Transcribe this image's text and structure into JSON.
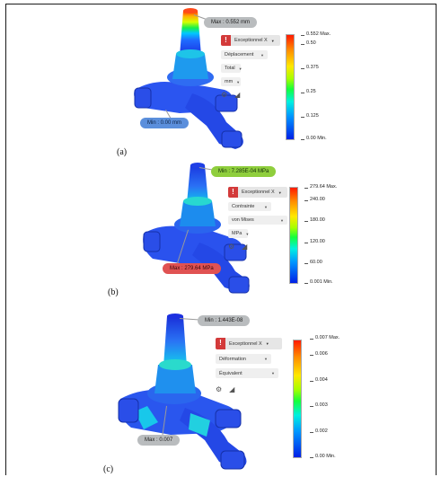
{
  "panels": [
    {
      "label": "(a)",
      "callouts": {
        "max": "Max : 0.552 mm",
        "min": "Min : 0.00 mm"
      },
      "controls": {
        "warning": "Exceptionnel X",
        "dropdowns": [
          "Déplacement",
          "Total",
          "mm"
        ]
      },
      "legend": [
        "0.552 Max.",
        "0.50",
        "0.375",
        "0.25",
        "0.125",
        "0.00 Min."
      ]
    },
    {
      "label": "(b)",
      "callouts": {
        "min": "Min : 7.285E-04 MPa",
        "max": "Max : 279.64 MPa"
      },
      "controls": {
        "warning": "Exceptionnel X",
        "dropdowns": [
          "Contrainte",
          "von Mises",
          "MPa"
        ]
      },
      "legend": [
        "279.64 Max.",
        "240.00",
        "180.00",
        "120.00",
        "60.00",
        "0.001 Min."
      ]
    },
    {
      "label": "(c)",
      "callouts": {
        "min": "Min : 1.443E-08",
        "max": "Max : 0.007"
      },
      "controls": {
        "warning": "Exceptionnel X",
        "dropdowns": [
          "Déformation",
          "Équivalent"
        ]
      },
      "legend": [
        "0.007 Max.",
        "0.006",
        "0.004",
        "0.003",
        "0.002",
        "0.00 Min."
      ]
    }
  ],
  "colors": {
    "callout_gray": "#b9bcbe",
    "callout_blue": "#5b8fdc",
    "callout_green": "#8fce3d",
    "callout_red": "#e05252",
    "warning_badge": "#d33a3a"
  },
  "icons": [
    "warning-icon",
    "gear-icon",
    "ruler-icon"
  ]
}
